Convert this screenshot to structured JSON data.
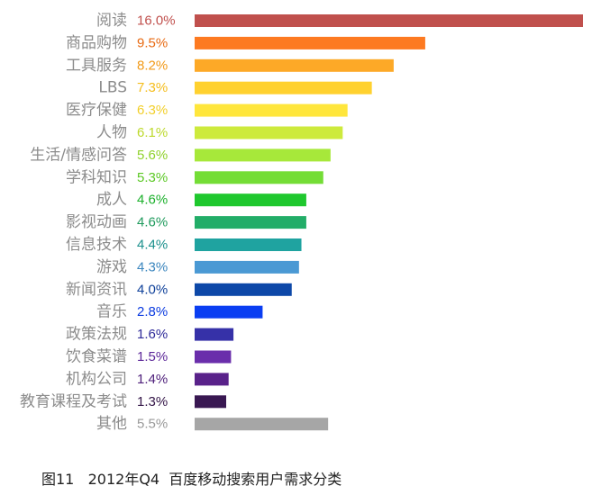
{
  "caption": "图11   2012年Q4  百度移动搜索用户需求分类",
  "chart_data": {
    "type": "bar",
    "orientation": "horizontal",
    "title": "",
    "xlabel": "",
    "ylabel": "",
    "grid": false,
    "legend": "none",
    "xlim": [
      0,
      16
    ],
    "value_unit": "%",
    "categories": [
      "阅读",
      "商品购物",
      "工具服务",
      "LBS",
      "医疗保健",
      "人物",
      "生活/情感问答",
      "学科知识",
      "成人",
      "影视动画",
      "信息技术",
      "游戏",
      "新闻资讯",
      "音乐",
      "政策法规",
      "饮食菜谱",
      "机构公司",
      "教育课程及考试",
      "其他"
    ],
    "values": [
      16.0,
      9.5,
      8.2,
      7.3,
      6.3,
      6.1,
      5.6,
      5.3,
      4.6,
      4.6,
      4.4,
      4.3,
      4.0,
      2.8,
      1.6,
      1.5,
      1.4,
      1.3,
      5.5
    ],
    "value_labels": [
      "16.0%",
      "9.5%",
      "8.2%",
      "7.3%",
      "6.3%",
      "6.1%",
      "5.6%",
      "5.3%",
      "4.6%",
      "4.6%",
      "4.4%",
      "4.3%",
      "4.0%",
      "2.8%",
      "1.6%",
      "1.5%",
      "1.4%",
      "1.3%",
      "5.5%"
    ],
    "colors": [
      "#c0504d",
      "#fd7a21",
      "#fda927",
      "#ffd12f",
      "#ffe63c",
      "#cdea3c",
      "#a7e83a",
      "#74dd36",
      "#1fc82e",
      "#22ad68",
      "#1fa3a0",
      "#4a99d4",
      "#0d48a8",
      "#0a3ef2",
      "#3631a8",
      "#6a2eab",
      "#59228a",
      "#391852",
      "#a6a6a6"
    ],
    "label_colors": [
      "#c0504d",
      "#e86a12",
      "#f29a18",
      "#f5bd1c",
      "#f2cf2a",
      "#bdd92c",
      "#8fd12a",
      "#5cc825",
      "#1ab02a",
      "#1f9a5c",
      "#1a8f8c",
      "#3b86be",
      "#0d3f99",
      "#0a3ae0",
      "#2e2a99",
      "#5d2899",
      "#4d1e7a",
      "#331547",
      "#999999"
    ]
  }
}
